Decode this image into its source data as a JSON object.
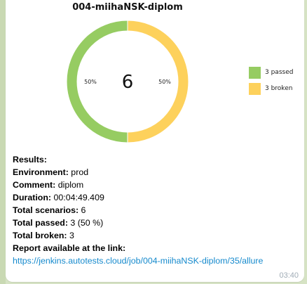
{
  "colors": {
    "passed": "#96cc62",
    "broken": "#fdd15c",
    "link": "#168acd",
    "background": "#d6e3c4"
  },
  "chart_data": {
    "type": "pie",
    "title": "004-miihaNSK-diplom",
    "center_label": "6",
    "slices": [
      {
        "name": "passed",
        "value": 3,
        "percent_label": "50%",
        "color": "#96cc62"
      },
      {
        "name": "broken",
        "value": 3,
        "percent_label": "50%",
        "color": "#fdd15c"
      }
    ],
    "legend": [
      "3 passed",
      "3 broken"
    ],
    "legend_position": "right"
  },
  "message": {
    "results_label": "Results:",
    "environment_label": "Environment:",
    "environment_value": " prod",
    "comment_label": "Comment:",
    "comment_value": " diplom",
    "duration_label": "Duration:",
    "duration_value": " 00:04:49.409",
    "scenarios_label": "Total scenarios:",
    "scenarios_value": " 6",
    "passed_label": "Total passed:",
    "passed_value": " 3 (50 %)",
    "broken_label": "Total broken:",
    "broken_value": " 3",
    "report_label": "Report available at the link:",
    "report_link": "https://jenkins.autotests.cloud/job/004-miihaNSK-diplom/35/allure"
  },
  "timestamp": "03:40"
}
